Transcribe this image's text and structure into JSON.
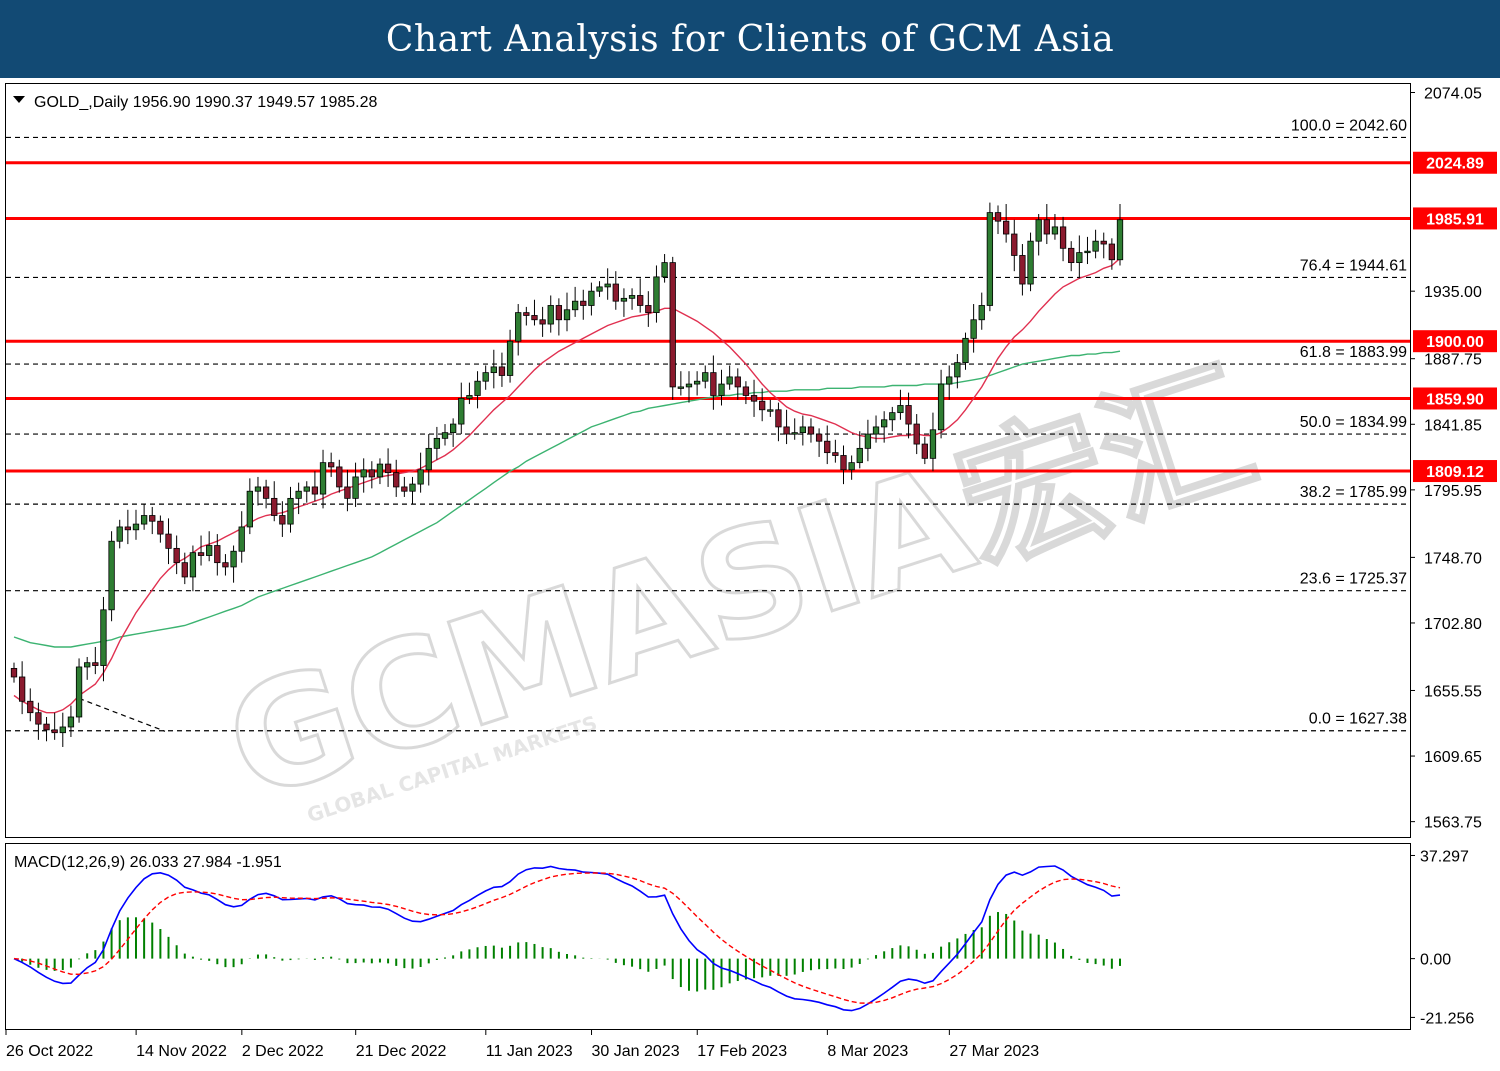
{
  "banner": {
    "title": "Chart Analysis for Clients of GCM Asia"
  },
  "watermark": {
    "main": "GCMASIA宏汇",
    "sub": "GLOBAL CAPITAL MARKETS"
  },
  "chart_data": {
    "type": "candlestick",
    "symbol_info": "GOLD_,Daily  1956.90 1990.37 1949.57 1985.28",
    "colors": {
      "bull": "#2e7d32",
      "bear": "#8b1a2e",
      "ma_fast": "#e03050",
      "ma_slow": "#3cb371",
      "support_resistance": "#ff0000",
      "fib": "#000000"
    },
    "price_axis": {
      "ylim": [
        1553,
        2080
      ],
      "ticks": [
        "2074.05",
        "1935.00",
        "1887.75",
        "1841.85",
        "1795.95",
        "1748.70",
        "1702.80",
        "1655.55",
        "1609.65",
        "1563.75"
      ]
    },
    "levels": [
      {
        "label": "2024.89",
        "value": 2024.89
      },
      {
        "label": "1985.91",
        "value": 1985.91
      },
      {
        "label": "1900.00",
        "value": 1900.0
      },
      {
        "label": "1859.90",
        "value": 1859.9
      },
      {
        "label": "1809.12",
        "value": 1809.12
      }
    ],
    "fibonacci": [
      {
        "label": "100.0 = 2042.60",
        "value": 2042.6
      },
      {
        "label": "76.4 = 1944.61",
        "value": 1944.61
      },
      {
        "label": "61.8 = 1883.99",
        "value": 1883.99
      },
      {
        "label": "50.0 = 1834.99",
        "value": 1834.99
      },
      {
        "label": "38.2 = 1785.99",
        "value": 1785.99
      },
      {
        "label": "23.6 = 1725.37",
        "value": 1725.37
      },
      {
        "label": "0.0 = 1627.38",
        "value": 1627.38
      }
    ],
    "date_labels": [
      "26 Oct 2022",
      "14 Nov 2022",
      "2 Dec 2022",
      "21 Dec 2022",
      "11 Jan 2023",
      "30 Jan 2023",
      "17 Feb 2023",
      "8 Mar 2023",
      "27 Mar 2023"
    ],
    "closes": [
      1665,
      1648,
      1640,
      1632,
      1628,
      1626,
      1630,
      1637,
      1672,
      1675,
      1673,
      1712,
      1760,
      1770,
      1768,
      1772,
      1778,
      1774,
      1765,
      1755,
      1745,
      1735,
      1752,
      1750,
      1757,
      1745,
      1742,
      1753,
      1770,
      1795,
      1798,
      1790,
      1778,
      1772,
      1790,
      1795,
      1798,
      1793,
      1815,
      1812,
      1798,
      1790,
      1805,
      1810,
      1805,
      1814,
      1808,
      1798,
      1795,
      1800,
      1810,
      1825,
      1832,
      1836,
      1842,
      1860,
      1862,
      1872,
      1878,
      1882,
      1876,
      1900,
      1920,
      1918,
      1915,
      1912,
      1925,
      1915,
      1922,
      1928,
      1925,
      1935,
      1938,
      1940,
      1928,
      1930,
      1932,
      1925,
      1920,
      1945,
      1955,
      1868,
      1868,
      1870,
      1872,
      1878,
      1862,
      1870,
      1875,
      1868,
      1862,
      1858,
      1852,
      1852,
      1840,
      1835,
      1836,
      1840,
      1835,
      1830,
      1822,
      1820,
      1810,
      1815,
      1825,
      1835,
      1840,
      1845,
      1850,
      1855,
      1842,
      1828,
      1818,
      1838,
      1870,
      1875,
      1885,
      1902,
      1915,
      1925,
      1990,
      1984,
      1975,
      1960,
      1940,
      1970,
      1985,
      1975,
      1980,
      1965,
      1955,
      1962,
      1963,
      1970,
      1968,
      1957,
      1985
    ],
    "ma_fast": {
      "name": "",
      "values": [
        1652,
        1648,
        1645,
        1642,
        1640,
        1640,
        1642,
        1646,
        1652,
        1656,
        1660,
        1668,
        1678,
        1690,
        1700,
        1710,
        1718,
        1726,
        1734,
        1740,
        1745,
        1748,
        1752,
        1756,
        1758,
        1760,
        1763,
        1766,
        1769,
        1773,
        1776,
        1778,
        1779,
        1780,
        1782,
        1784,
        1786,
        1788,
        1790,
        1793,
        1795,
        1797,
        1799,
        1801,
        1803,
        1805,
        1806,
        1807,
        1808,
        1809,
        1811,
        1814,
        1817,
        1820,
        1824,
        1829,
        1834,
        1840,
        1846,
        1852,
        1857,
        1862,
        1868,
        1874,
        1880,
        1885,
        1889,
        1893,
        1896,
        1899,
        1902,
        1905,
        1908,
        1911,
        1913,
        1915,
        1917,
        1918,
        1919,
        1921,
        1923,
        1923,
        1920,
        1917,
        1914,
        1910,
        1906,
        1901,
        1896,
        1890,
        1884,
        1877,
        1870,
        1864,
        1859,
        1854,
        1851,
        1849,
        1848,
        1846,
        1844,
        1842,
        1839,
        1836,
        1834,
        1833,
        1832,
        1832,
        1833,
        1834,
        1834,
        1835,
        1834,
        1834,
        1836,
        1840,
        1845,
        1852,
        1860,
        1868,
        1878,
        1888,
        1896,
        1903,
        1908,
        1914,
        1921,
        1927,
        1933,
        1938,
        1941,
        1944,
        1946,
        1948,
        1951,
        1953,
        1958
      ]
    },
    "ma_slow": {
      "name": "",
      "values": [
        1693,
        1691,
        1689,
        1688,
        1687,
        1686,
        1686,
        1686,
        1687,
        1688,
        1689,
        1690,
        1691,
        1693,
        1694,
        1695,
        1696,
        1697,
        1698,
        1699,
        1700,
        1701,
        1703,
        1705,
        1707,
        1709,
        1711,
        1713,
        1715,
        1718,
        1721,
        1723,
        1725,
        1727,
        1729,
        1731,
        1733,
        1735,
        1737,
        1739,
        1741,
        1743,
        1745,
        1747,
        1749,
        1752,
        1755,
        1758,
        1761,
        1764,
        1767,
        1770,
        1773,
        1777,
        1781,
        1785,
        1789,
        1793,
        1797,
        1801,
        1805,
        1809,
        1812,
        1816,
        1819,
        1822,
        1825,
        1828,
        1831,
        1834,
        1837,
        1840,
        1842,
        1844,
        1846,
        1848,
        1850,
        1851,
        1853,
        1854,
        1855,
        1856,
        1857,
        1858,
        1859,
        1860,
        1861,
        1862,
        1862,
        1863,
        1863,
        1864,
        1864,
        1865,
        1865,
        1865,
        1866,
        1866,
        1866,
        1866,
        1867,
        1867,
        1867,
        1867,
        1868,
        1868,
        1868,
        1868,
        1869,
        1869,
        1869,
        1869,
        1870,
        1870,
        1870,
        1870,
        1871,
        1872,
        1873,
        1874,
        1876,
        1878,
        1880,
        1882,
        1884,
        1885,
        1886,
        1887,
        1888,
        1889,
        1890,
        1890,
        1891,
        1891,
        1892,
        1892,
        1893
      ]
    },
    "macd": {
      "label": "MACD(12,26,9) 26.033 27.984 -1.951",
      "ylim": [
        -24,
        40
      ],
      "ticks": [
        "37.297",
        "0.00",
        "-21.256"
      ],
      "main_color": "#0000ff",
      "signal_color": "#ff0000",
      "hist_color": "#008000"
    }
  }
}
